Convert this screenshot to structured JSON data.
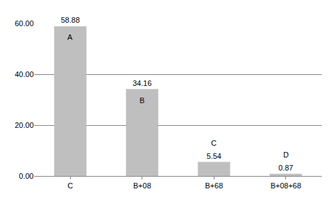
{
  "chart_data": {
    "type": "bar",
    "categories": [
      "C",
      "B+08",
      "B+68",
      "B+08+68"
    ],
    "values": [
      58.88,
      34.16,
      5.54,
      0.87
    ],
    "color": "#bfbfbf",
    "ylim": [
      0,
      60
    ],
    "yticks": [
      {
        "value": 0,
        "label": "0.00"
      },
      {
        "value": 20,
        "label": "20.00"
      },
      {
        "value": 40,
        "label": "40.00"
      },
      {
        "value": 60,
        "label": "60.00"
      }
    ],
    "grid": true,
    "data_labels": true,
    "annotations": [
      {
        "category": "C",
        "text": "A"
      },
      {
        "category": "B+08",
        "text": "B"
      },
      {
        "category": "B+68",
        "text": "C"
      },
      {
        "category": "B+08+68",
        "text": "D"
      }
    ]
  }
}
